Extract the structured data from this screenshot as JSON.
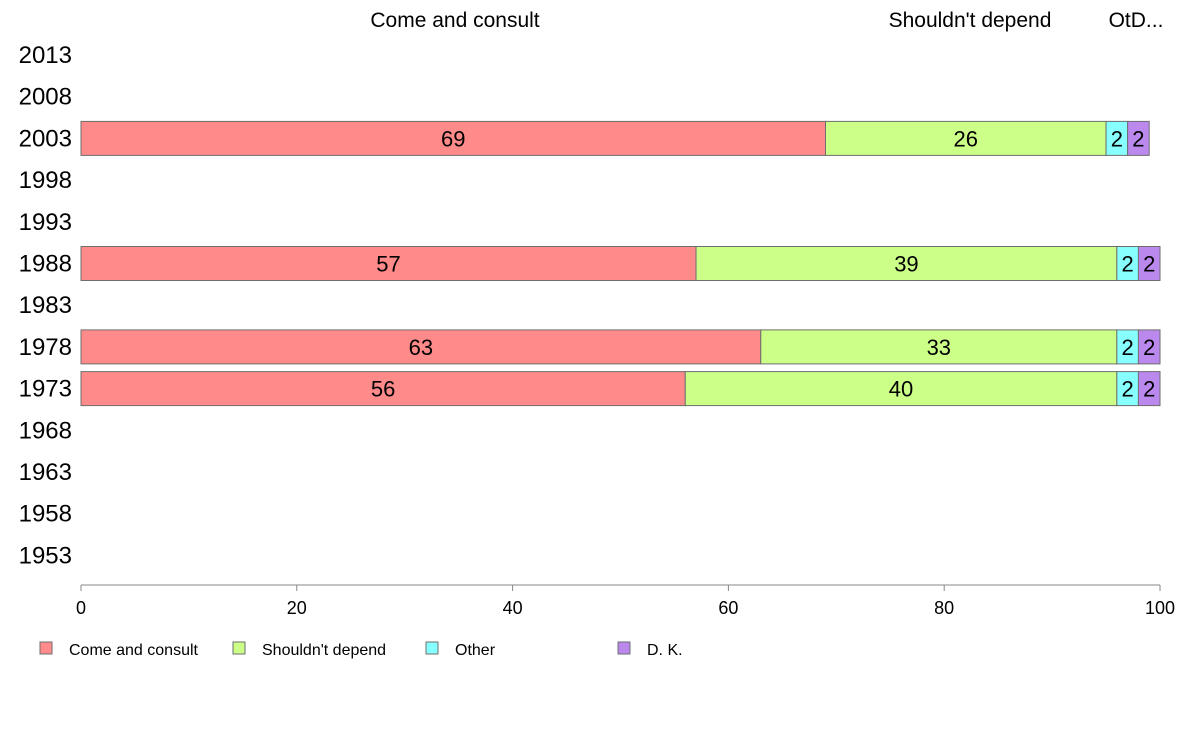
{
  "chart_data": {
    "type": "bar",
    "orientation": "horizontal",
    "stacked": true,
    "categories": [
      "2013",
      "2008",
      "2003",
      "1998",
      "1993",
      "1988",
      "1983",
      "1978",
      "1973",
      "1968",
      "1963",
      "1958",
      "1953"
    ],
    "series": [
      {
        "name": "Come and consult",
        "color": "#ff8a8a",
        "values": [
          null,
          null,
          69,
          null,
          null,
          57,
          null,
          63,
          56,
          null,
          null,
          null,
          null
        ]
      },
      {
        "name": "Shouldn't depend",
        "color": "#ccff88",
        "values": [
          null,
          null,
          26,
          null,
          null,
          39,
          null,
          33,
          40,
          null,
          null,
          null,
          null
        ]
      },
      {
        "name": "Other",
        "color": "#88ffff",
        "values": [
          null,
          null,
          2,
          null,
          null,
          2,
          null,
          2,
          2,
          null,
          null,
          null,
          null
        ]
      },
      {
        "name": "D. K.",
        "color": "#bb88ee",
        "values": [
          null,
          null,
          2,
          null,
          null,
          2,
          null,
          2,
          2,
          null,
          null,
          null,
          null
        ]
      }
    ],
    "column_headers": [
      "Come and consult",
      "Shouldn't depend",
      "OtD..."
    ],
    "xlim": [
      0,
      100
    ],
    "xticks": [
      "0",
      "20",
      "40",
      "60",
      "80",
      "100"
    ],
    "grid": false,
    "legend_position": "bottom-left"
  }
}
